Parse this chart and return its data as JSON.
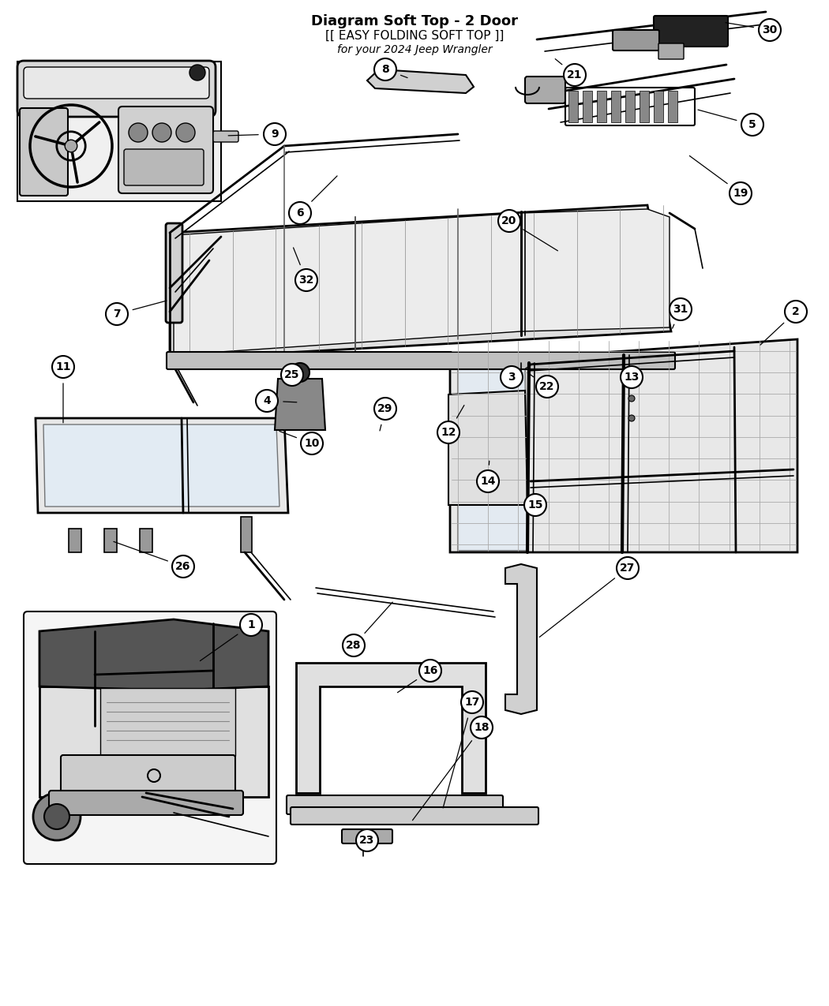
{
  "title": "Diagram Soft Top - 2 Door",
  "subtitle": "[[ EASY FOLDING SOFT TOP ]]",
  "vehicle": "for your 2024 Jeep Wrangler",
  "bg_color": "#ffffff",
  "lc": "#000000",
  "gray1": "#888888",
  "gray2": "#cccccc",
  "gray3": "#444444",
  "gray4": "#e8e8e8",
  "label_fontsize": 10,
  "title_fontsize": 13
}
